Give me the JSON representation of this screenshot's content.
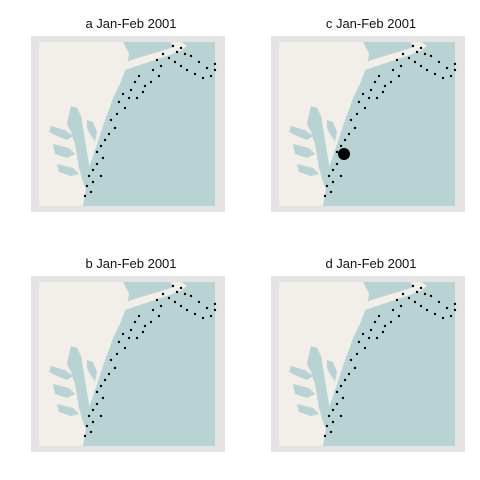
{
  "panels": [
    {
      "id": "a",
      "title": "a Jan-Feb 2001"
    },
    {
      "id": "c",
      "title": "c Jan-Feb 2001"
    },
    {
      "id": "b",
      "title": "b Jan-Feb 2001"
    },
    {
      "id": "d",
      "title": "d Jan-Feb 2001"
    }
  ],
  "colors": {
    "frame": "#e3e3e3",
    "land": "#f2efe9",
    "water": "#b8d3d4",
    "station": "#000000"
  }
}
